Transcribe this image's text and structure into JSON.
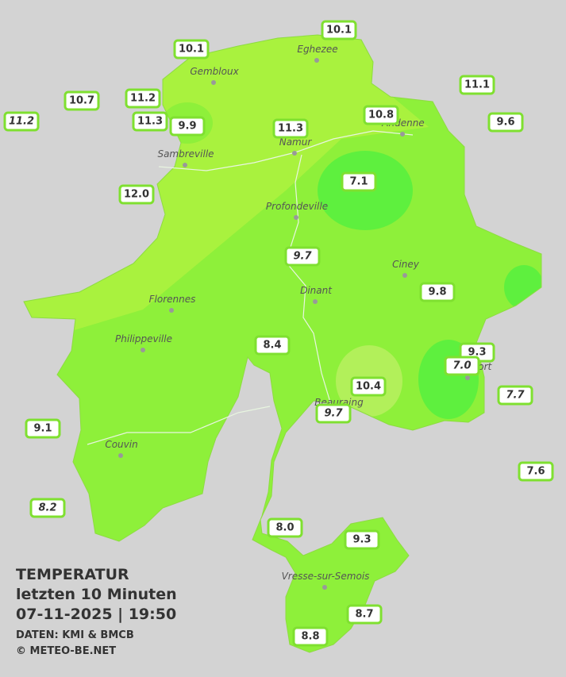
{
  "title": {
    "lines": [
      "TEMPERATUR",
      "letzten 10 Minuten",
      "07-11-2025  |  19:50"
    ],
    "credits": [
      "DATEN: KMI & BMCB",
      "© METEO-BE.NET"
    ]
  },
  "stations": [
    "10.1",
    "10.1",
    "11.1",
    "10.7",
    "11.2",
    "11.2",
    "11.3",
    "9.9",
    "11.3",
    "10.8",
    "9.6",
    "7.1",
    "12.0",
    "9.7",
    "9.8",
    "8.4",
    "9.3",
    "7.0",
    "10.4",
    "7.7",
    "9.7",
    "9.1",
    "7.6",
    "8.2",
    "8.0",
    "9.3",
    "8.7",
    "8.8"
  ],
  "towns": [
    "Eghezee",
    "Gembloux",
    "Andenne",
    "Namur",
    "Sambreville",
    "Profondeville",
    "Ciney",
    "Dinant",
    "Florennes",
    "Philippeville",
    "Rochefort",
    "Beauraing",
    "Couvin",
    "Vresse-sur-Semois"
  ]
}
